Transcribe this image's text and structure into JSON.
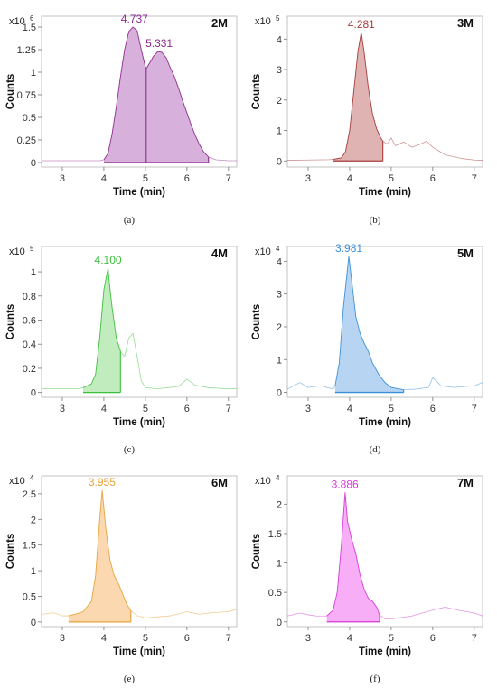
{
  "chart_data": [
    {
      "type": "area",
      "panel_label": "2M",
      "caption": "(a)",
      "multiplier_base": "x10",
      "multiplier_exp": "6",
      "xlabel": "Time (min)",
      "ylabel": "Counts",
      "xlim": [
        2.5,
        7.2
      ],
      "ylim": [
        -0.05,
        1.62
      ],
      "xticks": [
        3,
        4,
        5,
        6,
        7
      ],
      "yticks": [
        0,
        0.25,
        0.5,
        0.75,
        1,
        1.25,
        1.5
      ],
      "ytick_labels": [
        "0",
        "0.25",
        "0.5",
        "0.75",
        "1",
        "1.25",
        "1.5"
      ],
      "color": "#8e2a8e",
      "fill": "#d7b0db",
      "integration": [
        4.0,
        6.52
      ],
      "split_at": 5.02,
      "peaks": [
        {
          "label": "4.737",
          "x": 4.737,
          "y": 1.5
        },
        {
          "label": "5.331",
          "x": 5.331,
          "y": 1.23
        }
      ],
      "x": [
        2.5,
        3.0,
        3.5,
        3.9,
        4.0,
        4.1,
        4.2,
        4.3,
        4.4,
        4.5,
        4.6,
        4.7,
        4.8,
        4.9,
        5.0,
        5.02,
        5.1,
        5.2,
        5.3,
        5.4,
        5.5,
        5.6,
        5.7,
        5.8,
        5.9,
        6.0,
        6.1,
        6.2,
        6.3,
        6.4,
        6.52,
        6.7,
        7.0,
        7.2
      ],
      "values": [
        0.02,
        0.02,
        0.02,
        0.02,
        0.03,
        0.1,
        0.32,
        0.62,
        0.95,
        1.25,
        1.45,
        1.5,
        1.46,
        1.25,
        1.06,
        1.04,
        1.1,
        1.18,
        1.23,
        1.22,
        1.16,
        1.05,
        0.95,
        0.82,
        0.68,
        0.55,
        0.42,
        0.3,
        0.2,
        0.12,
        0.06,
        0.03,
        0.02,
        0.02
      ]
    },
    {
      "type": "area",
      "panel_label": "3M",
      "caption": "(b)",
      "multiplier_base": "x10",
      "multiplier_exp": "5",
      "xlabel": "Time (min)",
      "ylabel": "Counts",
      "xlim": [
        2.5,
        7.2
      ],
      "ylim": [
        -0.2,
        4.75
      ],
      "xticks": [
        3,
        4,
        5,
        6,
        7
      ],
      "yticks": [
        0,
        1,
        2,
        3,
        4
      ],
      "ytick_labels": [
        "0",
        "1",
        "2",
        "3",
        "4"
      ],
      "color": "#a83a3a",
      "fill": "#deb3b1",
      "integration": [
        3.6,
        4.8
      ],
      "split_at": null,
      "peaks": [
        {
          "label": "4.281",
          "x": 4.281,
          "y": 4.22
        }
      ],
      "x": [
        2.5,
        3.0,
        3.5,
        3.6,
        3.8,
        3.9,
        4.0,
        4.1,
        4.2,
        4.28,
        4.35,
        4.45,
        4.55,
        4.65,
        4.75,
        4.8,
        4.9,
        5.0,
        5.1,
        5.3,
        5.5,
        5.7,
        5.85,
        6.0,
        6.3,
        6.7,
        7.0,
        7.2
      ],
      "values": [
        0.02,
        0.03,
        0.04,
        0.05,
        0.1,
        0.3,
        1.0,
        2.3,
        3.6,
        4.22,
        3.55,
        2.4,
        1.55,
        1.05,
        0.75,
        0.65,
        0.55,
        0.75,
        0.5,
        0.62,
        0.45,
        0.55,
        0.65,
        0.45,
        0.2,
        0.08,
        0.03,
        0.02
      ]
    },
    {
      "type": "area",
      "panel_label": "4M",
      "caption": "(c)",
      "multiplier_base": "x10",
      "multiplier_exp": "5",
      "xlabel": "Time (min)",
      "ylabel": "Counts",
      "xlim": [
        2.5,
        7.2
      ],
      "ylim": [
        -0.04,
        1.21
      ],
      "xticks": [
        3,
        4,
        5,
        6,
        7
      ],
      "yticks": [
        0,
        0.2,
        0.4,
        0.6,
        0.8,
        1
      ],
      "ytick_labels": [
        "0",
        "0.2",
        "0.4",
        "0.6",
        "0.8",
        "1"
      ],
      "color": "#3cbf3c",
      "fill": "#c1ecbe",
      "integration": [
        3.5,
        4.4
      ],
      "split_at": null,
      "peaks": [
        {
          "label": "4.100",
          "x": 4.1,
          "y": 1.03
        }
      ],
      "x": [
        2.5,
        3.0,
        3.4,
        3.5,
        3.7,
        3.8,
        3.9,
        4.0,
        4.1,
        4.15,
        4.2,
        4.3,
        4.4,
        4.5,
        4.6,
        4.7,
        4.8,
        4.9,
        5.0,
        5.3,
        5.8,
        6.0,
        6.2,
        6.5,
        7.0,
        7.2
      ],
      "values": [
        0.03,
        0.03,
        0.03,
        0.04,
        0.07,
        0.15,
        0.45,
        0.85,
        1.03,
        0.85,
        0.7,
        0.45,
        0.34,
        0.3,
        0.45,
        0.49,
        0.3,
        0.1,
        0.04,
        0.03,
        0.05,
        0.11,
        0.06,
        0.04,
        0.03,
        0.03
      ]
    },
    {
      "type": "area",
      "panel_label": "5M",
      "caption": "(d)",
      "multiplier_base": "x10",
      "multiplier_exp": "4",
      "xlabel": "Time (min)",
      "ylabel": "Counts",
      "xlim": [
        2.5,
        7.2
      ],
      "ylim": [
        -0.15,
        4.45
      ],
      "xticks": [
        3,
        4,
        5,
        6,
        7
      ],
      "yticks": [
        0,
        1,
        2,
        3,
        4
      ],
      "ytick_labels": [
        "0",
        "1",
        "2",
        "3",
        "4"
      ],
      "color": "#3b8fd6",
      "fill": "#b7d5f3",
      "integration": [
        3.65,
        5.3
      ],
      "split_at": null,
      "peaks": [
        {
          "label": "3.981",
          "x": 3.981,
          "y": 4.15
        }
      ],
      "x": [
        2.5,
        2.8,
        3.0,
        3.3,
        3.6,
        3.65,
        3.75,
        3.85,
        3.98,
        4.05,
        4.15,
        4.25,
        4.35,
        4.45,
        4.55,
        4.7,
        4.85,
        5.0,
        5.3,
        5.6,
        5.9,
        6.0,
        6.2,
        6.5,
        7.0,
        7.2
      ],
      "values": [
        0.1,
        0.3,
        0.15,
        0.2,
        0.1,
        0.2,
        0.9,
        2.6,
        4.15,
        3.4,
        2.3,
        1.8,
        1.5,
        1.25,
        0.9,
        0.55,
        0.3,
        0.15,
        0.08,
        0.1,
        0.15,
        0.45,
        0.2,
        0.15,
        0.2,
        0.3
      ]
    },
    {
      "type": "area",
      "panel_label": "6M",
      "caption": "(e)",
      "multiplier_base": "x10",
      "multiplier_exp": "4",
      "xlabel": "Time (min)",
      "ylabel": "Counts",
      "xlim": [
        2.5,
        7.2
      ],
      "ylim": [
        -0.09,
        2.85
      ],
      "xticks": [
        3,
        4,
        5,
        6,
        7
      ],
      "yticks": [
        0,
        0.5,
        1,
        1.5,
        2,
        2.5
      ],
      "ytick_labels": [
        "0",
        "0.5",
        "1",
        "1.5",
        "2",
        "2.5"
      ],
      "color": "#e6a23c",
      "fill": "#fbd8af",
      "integration": [
        3.15,
        4.65
      ],
      "split_at": null,
      "peaks": [
        {
          "label": "3.955",
          "x": 3.955,
          "y": 2.57
        }
      ],
      "x": [
        2.5,
        2.8,
        3.0,
        3.15,
        3.3,
        3.5,
        3.7,
        3.8,
        3.9,
        3.96,
        4.05,
        4.15,
        4.25,
        4.35,
        4.45,
        4.55,
        4.65,
        4.8,
        5.0,
        5.3,
        5.6,
        6.0,
        6.3,
        6.6,
        7.0,
        7.2
      ],
      "values": [
        0.15,
        0.18,
        0.12,
        0.12,
        0.15,
        0.2,
        0.4,
        0.9,
        2.0,
        2.57,
        1.8,
        1.2,
        0.9,
        0.75,
        0.55,
        0.35,
        0.22,
        0.12,
        0.08,
        0.1,
        0.12,
        0.2,
        0.15,
        0.18,
        0.2,
        0.25
      ]
    },
    {
      "type": "area",
      "panel_label": "7M",
      "caption": "(f)",
      "multiplier_base": "x10",
      "multiplier_exp": "4",
      "xlabel": "Time (min)",
      "ylabel": "Counts",
      "xlim": [
        2.5,
        7.2
      ],
      "ylim": [
        -0.08,
        2.48
      ],
      "xticks": [
        3,
        4,
        5,
        6,
        7
      ],
      "yticks": [
        0,
        0.5,
        1,
        1.5,
        2
      ],
      "ytick_labels": [
        "0",
        "0.5",
        "1",
        "1.5",
        "2"
      ],
      "color": "#d63ad6",
      "fill": "#f7aef7",
      "integration": [
        3.45,
        4.72
      ],
      "split_at": null,
      "peaks": [
        {
          "label": "3.886",
          "x": 3.886,
          "y": 2.2
        }
      ],
      "x": [
        2.5,
        2.8,
        3.0,
        3.2,
        3.45,
        3.6,
        3.7,
        3.8,
        3.89,
        3.95,
        4.05,
        4.15,
        4.25,
        4.35,
        4.45,
        4.55,
        4.65,
        4.72,
        4.85,
        5.0,
        5.5,
        6.0,
        6.3,
        6.6,
        7.0,
        7.2
      ],
      "values": [
        0.1,
        0.15,
        0.12,
        0.1,
        0.1,
        0.2,
        0.5,
        1.3,
        2.2,
        1.7,
        1.4,
        1.15,
        0.8,
        0.55,
        0.4,
        0.35,
        0.25,
        0.12,
        0.05,
        0.05,
        0.1,
        0.2,
        0.25,
        0.2,
        0.15,
        0.1
      ]
    }
  ]
}
